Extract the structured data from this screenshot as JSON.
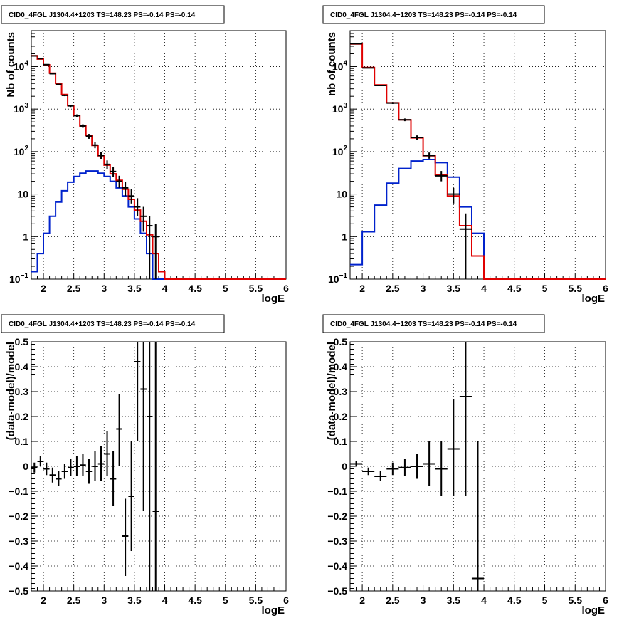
{
  "colors": {
    "data": "#000000",
    "total_model": "#e00000",
    "source_model": "#0022cc"
  },
  "chart_data": [
    {
      "type": "histogram",
      "scale": "log",
      "title": "CID0_4FGL J1304.4+1203 TS=148.23 PS=-0.14 PS=-0.14",
      "xlabel": "logE",
      "ylabel": "Nb of counts",
      "xlim": [
        1.8,
        6.0
      ],
      "ylim": [
        0.1,
        70000
      ],
      "grid": true,
      "xticks": [
        "2",
        "2.5",
        "3",
        "3.5",
        "4",
        "4.5",
        "5",
        "5.5",
        "6"
      ],
      "yticks": [
        {
          "base": "10",
          "exp": "−1",
          "value": 0.1
        },
        {
          "base": "1",
          "exp": "",
          "value": 1
        },
        {
          "base": "10",
          "exp": "",
          "value": 10
        },
        {
          "base": "10",
          "exp": "2",
          "value": 100
        },
        {
          "base": "10",
          "exp": "3",
          "value": 1000
        },
        {
          "base": "10",
          "exp": "4",
          "value": 10000
        }
      ],
      "bin_edges": [
        1.8,
        1.9,
        2.0,
        2.1,
        2.2,
        2.3,
        2.4,
        2.5,
        2.6,
        2.7,
        2.8,
        2.9,
        3.0,
        3.1,
        3.2,
        3.3,
        3.4,
        3.5,
        3.6,
        3.7,
        3.8,
        3.9,
        4.0,
        4.1,
        4.2,
        4.3,
        4.4,
        4.5,
        4.6,
        4.7,
        4.8,
        4.9,
        5.0,
        5.1,
        5.2,
        5.3,
        5.4,
        5.5,
        5.6,
        5.7,
        5.8,
        5.9,
        6.0
      ],
      "total_model": [
        18000,
        15000,
        11000,
        7000,
        4000,
        2200,
        1200,
        700,
        400,
        240,
        140,
        80,
        48,
        30,
        21,
        13,
        7.5,
        4.2,
        2.3,
        1.1,
        0.4,
        0.15,
        0.1,
        0.1,
        0.1,
        0.1,
        0.1,
        0.1,
        0.1,
        0.1,
        0.1,
        0.1,
        0.1,
        0.1,
        0.1,
        0.1,
        0.1,
        0.1,
        0.1,
        0.1,
        0.1,
        0.1
      ],
      "source_model": [
        0.15,
        0.4,
        1.2,
        3.0,
        6.5,
        12,
        19,
        26,
        31,
        35,
        35,
        31,
        26,
        20,
        14,
        9,
        5,
        2.6,
        1.2,
        0.4,
        0.1,
        0.1,
        0.1,
        0.1,
        0.1,
        0.1,
        0.1,
        0.1,
        0.1,
        0.1,
        0.1,
        0.1,
        0.1,
        0.1,
        0.1,
        0.1,
        0.1,
        0.1,
        0.1,
        0.1,
        0.1,
        0.1
      ],
      "data_points": [
        {
          "x": 1.85,
          "y": 17800,
          "lo": 17500,
          "hi": 18100
        },
        {
          "x": 1.95,
          "y": 15400,
          "lo": 15100,
          "hi": 15700
        },
        {
          "x": 2.05,
          "y": 11100,
          "lo": 10800,
          "hi": 11400
        },
        {
          "x": 2.15,
          "y": 6800,
          "lo": 6600,
          "hi": 7000
        },
        {
          "x": 2.25,
          "y": 3800,
          "lo": 3680,
          "hi": 3920
        },
        {
          "x": 2.35,
          "y": 2100,
          "lo": 2010,
          "hi": 2190
        },
        {
          "x": 2.45,
          "y": 1190,
          "lo": 1120,
          "hi": 1260
        },
        {
          "x": 2.55,
          "y": 700,
          "lo": 650,
          "hi": 750
        },
        {
          "x": 2.65,
          "y": 400,
          "lo": 360,
          "hi": 440
        },
        {
          "x": 2.75,
          "y": 230,
          "lo": 200,
          "hi": 260
        },
        {
          "x": 2.85,
          "y": 142,
          "lo": 120,
          "hi": 165
        },
        {
          "x": 2.95,
          "y": 81,
          "lo": 66,
          "hi": 96
        },
        {
          "x": 3.05,
          "y": 50,
          "lo": 39,
          "hi": 62
        },
        {
          "x": 3.15,
          "y": 34,
          "lo": 25,
          "hi": 44
        },
        {
          "x": 3.25,
          "y": 20,
          "lo": 14,
          "hi": 27
        },
        {
          "x": 3.35,
          "y": 14,
          "lo": 9,
          "hi": 19
        },
        {
          "x": 3.45,
          "y": 9,
          "lo": 6,
          "hi": 13
        },
        {
          "x": 3.55,
          "y": 5,
          "lo": 3,
          "hi": 8
        },
        {
          "x": 3.65,
          "y": 3,
          "lo": 1.3,
          "hi": 5
        },
        {
          "x": 3.75,
          "y": 1.8,
          "lo": 0.1,
          "hi": 3
        },
        {
          "x": 3.85,
          "y": 1.0,
          "lo": 0.1,
          "hi": 2
        }
      ]
    },
    {
      "type": "histogram",
      "scale": "log",
      "title": "CID0_4FGL J1304.4+1203 TS=148.23 PS=-0.14 PS=-0.14",
      "xlabel": "logE",
      "ylabel": "nb of counts",
      "xlim": [
        1.8,
        6.0
      ],
      "ylim": [
        0.1,
        70000
      ],
      "grid": true,
      "xticks": [
        "2",
        "2.5",
        "3",
        "3.5",
        "4",
        "4.5",
        "5",
        "5.5",
        "6"
      ],
      "yticks": [
        {
          "base": "10",
          "exp": "−1",
          "value": 0.1
        },
        {
          "base": "1",
          "exp": "",
          "value": 1
        },
        {
          "base": "10",
          "exp": "",
          "value": 10
        },
        {
          "base": "10",
          "exp": "2",
          "value": 100
        },
        {
          "base": "10",
          "exp": "3",
          "value": 1000
        },
        {
          "base": "10",
          "exp": "4",
          "value": 10000
        }
      ],
      "bin_edges": [
        1.8,
        2.0,
        2.2,
        2.4,
        2.6,
        2.8,
        3.0,
        3.2,
        3.4,
        3.6,
        3.8,
        4.0,
        4.2,
        4.4,
        4.6,
        4.8,
        5.0,
        5.2,
        5.4,
        5.6,
        5.8,
        6.0
      ],
      "total_model": [
        34000,
        9500,
        3700,
        1400,
        560,
        210,
        80,
        28,
        9,
        1.8,
        0.35,
        0.1,
        0.1,
        0.1,
        0.1,
        0.1,
        0.1,
        0.1,
        0.1,
        0.1,
        0.1
      ],
      "source_model": [
        0.22,
        1.3,
        5.5,
        18,
        40,
        60,
        65,
        55,
        25,
        5,
        1.2,
        0.1,
        0.1,
        0.1,
        0.1,
        0.1,
        0.1,
        0.1,
        0.1,
        0.1,
        0.1
      ],
      "data_points": [
        {
          "x": 1.9,
          "y": 34500,
          "lo": 34000,
          "hi": 35000
        },
        {
          "x": 2.1,
          "y": 9300,
          "lo": 9100,
          "hi": 9500
        },
        {
          "x": 2.3,
          "y": 3600,
          "lo": 3480,
          "hi": 3720
        },
        {
          "x": 2.5,
          "y": 1390,
          "lo": 1320,
          "hi": 1460
        },
        {
          "x": 2.7,
          "y": 560,
          "lo": 520,
          "hi": 600
        },
        {
          "x": 2.9,
          "y": 215,
          "lo": 190,
          "hi": 240
        },
        {
          "x": 3.1,
          "y": 81,
          "lo": 68,
          "hi": 95
        },
        {
          "x": 3.3,
          "y": 27,
          "lo": 20,
          "hi": 35
        },
        {
          "x": 3.5,
          "y": 10,
          "lo": 6,
          "hi": 14
        },
        {
          "x": 3.7,
          "y": 1.5,
          "lo": 0.1,
          "hi": 3.5
        }
      ]
    },
    {
      "type": "scatter",
      "title": "CID0_4FGL J1304.4+1203 TS=148.23 PS=-0.14 PS=-0.14",
      "xlabel": "logE",
      "ylabel": "(data-model)/model",
      "xlim": [
        1.8,
        6.0
      ],
      "ylim": [
        -0.5,
        0.5
      ],
      "grid": true,
      "xticks": [
        "2",
        "2.5",
        "3",
        "3.5",
        "4",
        "4.5",
        "5",
        "5.5",
        "6"
      ],
      "yticks": [
        "−0.5",
        "−0.4",
        "−0.3",
        "−0.2",
        "−0.1",
        "0",
        "0.1",
        "0.2",
        "0.3",
        "0.4",
        "0.5"
      ],
      "bin_width": 0.1,
      "points": [
        {
          "x": 1.85,
          "y": -0.005,
          "lo": -0.025,
          "hi": 0.015
        },
        {
          "x": 1.95,
          "y": 0.02,
          "lo": 0.0,
          "hi": 0.04
        },
        {
          "x": 2.05,
          "y": -0.01,
          "lo": -0.035,
          "hi": 0.015
        },
        {
          "x": 2.15,
          "y": -0.035,
          "lo": -0.065,
          "hi": -0.005
        },
        {
          "x": 2.25,
          "y": -0.05,
          "lo": -0.08,
          "hi": -0.02
        },
        {
          "x": 2.35,
          "y": -0.02,
          "lo": -0.05,
          "hi": 0.01
        },
        {
          "x": 2.45,
          "y": -0.005,
          "lo": -0.04,
          "hi": 0.03
        },
        {
          "x": 2.55,
          "y": 0.0,
          "lo": -0.04,
          "hi": 0.04
        },
        {
          "x": 2.65,
          "y": 0.005,
          "lo": -0.04,
          "hi": 0.05
        },
        {
          "x": 2.75,
          "y": -0.02,
          "lo": -0.07,
          "hi": 0.03
        },
        {
          "x": 2.85,
          "y": 0.0,
          "lo": -0.06,
          "hi": 0.06
        },
        {
          "x": 2.95,
          "y": 0.01,
          "lo": -0.06,
          "hi": 0.08
        },
        {
          "x": 3.05,
          "y": 0.05,
          "lo": -0.04,
          "hi": 0.14
        },
        {
          "x": 3.15,
          "y": -0.05,
          "lo": -0.16,
          "hi": 0.06
        },
        {
          "x": 3.25,
          "y": 0.15,
          "lo": 0.0,
          "hi": 0.29
        },
        {
          "x": 3.35,
          "y": -0.28,
          "lo": -0.44,
          "hi": -0.13
        },
        {
          "x": 3.45,
          "y": -0.12,
          "lo": -0.34,
          "hi": 0.1
        },
        {
          "x": 3.55,
          "y": 0.42,
          "lo": 0.1,
          "hi": 0.5
        },
        {
          "x": 3.65,
          "y": 0.31,
          "lo": -0.18,
          "hi": 0.5
        },
        {
          "x": 3.75,
          "y": 0.2,
          "lo": -0.5,
          "hi": 0.5
        },
        {
          "x": 3.85,
          "y": -0.18,
          "lo": -0.5,
          "hi": 0.5
        }
      ]
    },
    {
      "type": "scatter",
      "title": "CID0_4FGL J1304.4+1203 TS=148.23 PS=-0.14 PS=-0.14",
      "xlabel": "logE",
      "ylabel": "(data-model)/model",
      "xlim": [
        1.8,
        6.0
      ],
      "ylim": [
        -0.5,
        0.5
      ],
      "grid": true,
      "xticks": [
        "2",
        "2.5",
        "3",
        "3.5",
        "4",
        "4.5",
        "5",
        "5.5",
        "6"
      ],
      "yticks": [
        "−0.5",
        "−0.4",
        "−0.3",
        "−0.2",
        "−0.1",
        "0",
        "0.1",
        "0.2",
        "0.3",
        "0.4",
        "0.5"
      ],
      "bin_width": 0.2,
      "points": [
        {
          "x": 1.9,
          "y": 0.01,
          "lo": 0.0,
          "hi": 0.02
        },
        {
          "x": 2.1,
          "y": -0.02,
          "lo": -0.035,
          "hi": -0.005
        },
        {
          "x": 2.3,
          "y": -0.04,
          "lo": -0.06,
          "hi": -0.02
        },
        {
          "x": 2.5,
          "y": -0.01,
          "lo": -0.035,
          "hi": 0.015
        },
        {
          "x": 2.7,
          "y": -0.005,
          "lo": -0.04,
          "hi": 0.03
        },
        {
          "x": 2.9,
          "y": 0.0,
          "lo": -0.05,
          "hi": 0.05
        },
        {
          "x": 3.1,
          "y": 0.01,
          "lo": -0.08,
          "hi": 0.1
        },
        {
          "x": 3.3,
          "y": -0.01,
          "lo": -0.12,
          "hi": 0.1
        },
        {
          "x": 3.5,
          "y": 0.07,
          "lo": -0.12,
          "hi": 0.27
        },
        {
          "x": 3.7,
          "y": 0.28,
          "lo": -0.12,
          "hi": 0.5
        },
        {
          "x": 3.9,
          "y": -0.45,
          "lo": -0.5,
          "hi": 0.1
        }
      ]
    }
  ]
}
